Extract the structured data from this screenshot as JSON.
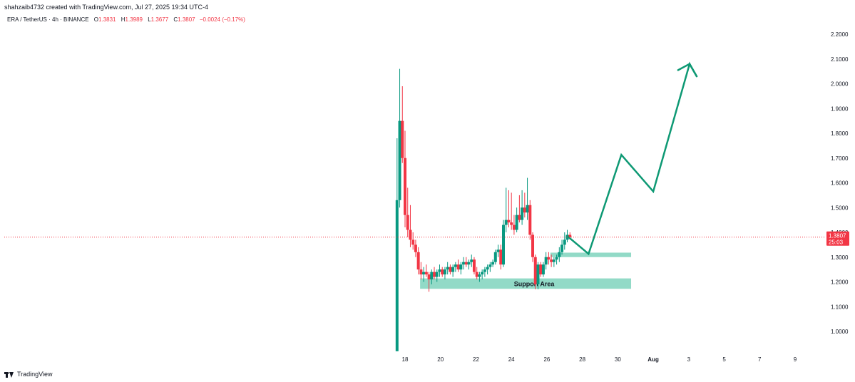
{
  "header": {
    "credit": "shahzaib4732 created with TradingView.com, Jul 27, 2025 19:34 UTC-4"
  },
  "legend": {
    "symbol": "ERA / TetherUS · 4h · BINANCE",
    "o_label": "O",
    "o": "1.3831",
    "h_label": "H",
    "h": "1.3989",
    "l_label": "L",
    "l": "1.3677",
    "c_label": "C",
    "c": "1.3807",
    "change": "−0.0024 (−0.17%)"
  },
  "price_tag": {
    "price": "1.3807",
    "countdown": "25:03"
  },
  "footer": {
    "brand": "TradingView"
  },
  "colors": {
    "up": "#089981",
    "down": "#f23645",
    "projection": "#0e9974",
    "zone": "#7fd3bd",
    "current_line": "#f23645"
  },
  "chart_data": {
    "type": "candlestick",
    "ylim": [
      0.92,
      2.25
    ],
    "yticks": [
      "2.2000",
      "2.1000",
      "2.0000",
      "1.9000",
      "1.8000",
      "1.7000",
      "1.6000",
      "1.5000",
      "1.4000",
      "1.3000",
      "1.2000",
      "1.1000",
      "1.0000"
    ],
    "ytick_values": [
      2.2,
      2.1,
      2.0,
      1.9,
      1.8,
      1.7,
      1.6,
      1.5,
      1.4,
      1.3,
      1.2,
      1.1,
      1.0
    ],
    "xlim": [
      12.5,
      40.5
    ],
    "xticks": [
      "18",
      "20",
      "22",
      "24",
      "26",
      "28",
      "30",
      "Aug",
      "3",
      "5",
      "7",
      "9"
    ],
    "xtick_values": [
      18,
      20,
      22,
      24,
      26,
      28,
      30,
      32,
      34,
      36,
      38,
      40
    ],
    "candles": [
      {
        "t": 17.55,
        "o": 0.92,
        "h": 1.78,
        "l": 0.92,
        "c": 1.53
      },
      {
        "t": 17.7,
        "o": 1.53,
        "h": 2.06,
        "l": 1.5,
        "c": 1.85
      },
      {
        "t": 17.85,
        "o": 1.85,
        "h": 1.99,
        "l": 1.68,
        "c": 1.7
      },
      {
        "t": 18.0,
        "o": 1.7,
        "h": 1.81,
        "l": 1.42,
        "c": 1.47
      },
      {
        "t": 18.15,
        "o": 1.47,
        "h": 1.58,
        "l": 1.38,
        "c": 1.41
      },
      {
        "t": 18.3,
        "o": 1.41,
        "h": 1.51,
        "l": 1.34,
        "c": 1.37
      },
      {
        "t": 18.45,
        "o": 1.37,
        "h": 1.4,
        "l": 1.33,
        "c": 1.35
      },
      {
        "t": 18.6,
        "o": 1.35,
        "h": 1.37,
        "l": 1.3,
        "c": 1.32
      },
      {
        "t": 18.75,
        "o": 1.32,
        "h": 1.34,
        "l": 1.23,
        "c": 1.25
      },
      {
        "t": 18.9,
        "o": 1.25,
        "h": 1.28,
        "l": 1.21,
        "c": 1.23
      },
      {
        "t": 19.05,
        "o": 1.23,
        "h": 1.26,
        "l": 1.2,
        "c": 1.24
      },
      {
        "t": 19.2,
        "o": 1.24,
        "h": 1.27,
        "l": 1.22,
        "c": 1.23
      },
      {
        "t": 19.35,
        "o": 1.23,
        "h": 1.24,
        "l": 1.16,
        "c": 1.21
      },
      {
        "t": 19.5,
        "o": 1.21,
        "h": 1.25,
        "l": 1.19,
        "c": 1.24
      },
      {
        "t": 19.65,
        "o": 1.24,
        "h": 1.26,
        "l": 1.21,
        "c": 1.22
      },
      {
        "t": 19.8,
        "o": 1.22,
        "h": 1.25,
        "l": 1.2,
        "c": 1.24
      },
      {
        "t": 19.95,
        "o": 1.24,
        "h": 1.27,
        "l": 1.22,
        "c": 1.25
      },
      {
        "t": 20.1,
        "o": 1.25,
        "h": 1.26,
        "l": 1.22,
        "c": 1.23
      },
      {
        "t": 20.25,
        "o": 1.23,
        "h": 1.26,
        "l": 1.21,
        "c": 1.25
      },
      {
        "t": 20.4,
        "o": 1.25,
        "h": 1.28,
        "l": 1.23,
        "c": 1.26
      },
      {
        "t": 20.55,
        "o": 1.26,
        "h": 1.27,
        "l": 1.23,
        "c": 1.24
      },
      {
        "t": 20.7,
        "o": 1.24,
        "h": 1.27,
        "l": 1.22,
        "c": 1.26
      },
      {
        "t": 20.85,
        "o": 1.26,
        "h": 1.28,
        "l": 1.24,
        "c": 1.27
      },
      {
        "t": 21.0,
        "o": 1.27,
        "h": 1.29,
        "l": 1.24,
        "c": 1.25
      },
      {
        "t": 21.15,
        "o": 1.25,
        "h": 1.28,
        "l": 1.23,
        "c": 1.27
      },
      {
        "t": 21.3,
        "o": 1.27,
        "h": 1.3,
        "l": 1.25,
        "c": 1.28
      },
      {
        "t": 21.45,
        "o": 1.28,
        "h": 1.3,
        "l": 1.26,
        "c": 1.27
      },
      {
        "t": 21.6,
        "o": 1.27,
        "h": 1.29,
        "l": 1.25,
        "c": 1.28
      },
      {
        "t": 21.75,
        "o": 1.28,
        "h": 1.31,
        "l": 1.26,
        "c": 1.29
      },
      {
        "t": 21.9,
        "o": 1.29,
        "h": 1.3,
        "l": 1.23,
        "c": 1.24
      },
      {
        "t": 22.05,
        "o": 1.24,
        "h": 1.26,
        "l": 1.21,
        "c": 1.22
      },
      {
        "t": 22.2,
        "o": 1.22,
        "h": 1.24,
        "l": 1.2,
        "c": 1.23
      },
      {
        "t": 22.35,
        "o": 1.23,
        "h": 1.25,
        "l": 1.21,
        "c": 1.24
      },
      {
        "t": 22.5,
        "o": 1.24,
        "h": 1.26,
        "l": 1.22,
        "c": 1.25
      },
      {
        "t": 22.65,
        "o": 1.25,
        "h": 1.27,
        "l": 1.23,
        "c": 1.26
      },
      {
        "t": 22.8,
        "o": 1.26,
        "h": 1.28,
        "l": 1.24,
        "c": 1.27
      },
      {
        "t": 22.95,
        "o": 1.27,
        "h": 1.29,
        "l": 1.26,
        "c": 1.28
      },
      {
        "t": 23.1,
        "o": 1.28,
        "h": 1.33,
        "l": 1.27,
        "c": 1.32
      },
      {
        "t": 23.25,
        "o": 1.32,
        "h": 1.35,
        "l": 1.3,
        "c": 1.33
      },
      {
        "t": 23.4,
        "o": 1.33,
        "h": 1.35,
        "l": 1.25,
        "c": 1.27
      },
      {
        "t": 23.55,
        "o": 1.27,
        "h": 1.45,
        "l": 1.26,
        "c": 1.43
      },
      {
        "t": 23.7,
        "o": 1.43,
        "h": 1.58,
        "l": 1.4,
        "c": 1.45
      },
      {
        "t": 23.85,
        "o": 1.45,
        "h": 1.57,
        "l": 1.42,
        "c": 1.44
      },
      {
        "t": 24.0,
        "o": 1.44,
        "h": 1.56,
        "l": 1.41,
        "c": 1.43
      },
      {
        "t": 24.15,
        "o": 1.43,
        "h": 1.47,
        "l": 1.39,
        "c": 1.41
      },
      {
        "t": 24.3,
        "o": 1.41,
        "h": 1.5,
        "l": 1.4,
        "c": 1.47
      },
      {
        "t": 24.45,
        "o": 1.47,
        "h": 1.55,
        "l": 1.44,
        "c": 1.45
      },
      {
        "t": 24.6,
        "o": 1.45,
        "h": 1.57,
        "l": 1.43,
        "c": 1.5
      },
      {
        "t": 24.75,
        "o": 1.5,
        "h": 1.56,
        "l": 1.46,
        "c": 1.48
      },
      {
        "t": 24.9,
        "o": 1.48,
        "h": 1.62,
        "l": 1.45,
        "c": 1.51
      },
      {
        "t": 25.05,
        "o": 1.51,
        "h": 1.53,
        "l": 1.37,
        "c": 1.39
      },
      {
        "t": 25.2,
        "o": 1.39,
        "h": 1.4,
        "l": 1.28,
        "c": 1.3
      },
      {
        "t": 25.35,
        "o": 1.3,
        "h": 1.31,
        "l": 1.17,
        "c": 1.19
      },
      {
        "t": 25.5,
        "o": 1.19,
        "h": 1.28,
        "l": 1.17,
        "c": 1.27
      },
      {
        "t": 25.65,
        "o": 1.27,
        "h": 1.28,
        "l": 1.22,
        "c": 1.23
      },
      {
        "t": 25.8,
        "o": 1.23,
        "h": 1.28,
        "l": 1.22,
        "c": 1.27
      },
      {
        "t": 25.95,
        "o": 1.27,
        "h": 1.32,
        "l": 1.25,
        "c": 1.3
      },
      {
        "t": 26.1,
        "o": 1.3,
        "h": 1.32,
        "l": 1.27,
        "c": 1.29
      },
      {
        "t": 26.25,
        "o": 1.29,
        "h": 1.31,
        "l": 1.26,
        "c": 1.28
      },
      {
        "t": 26.4,
        "o": 1.28,
        "h": 1.3,
        "l": 1.26,
        "c": 1.29
      },
      {
        "t": 26.55,
        "o": 1.29,
        "h": 1.31,
        "l": 1.27,
        "c": 1.3
      },
      {
        "t": 26.7,
        "o": 1.3,
        "h": 1.34,
        "l": 1.28,
        "c": 1.32
      },
      {
        "t": 26.85,
        "o": 1.32,
        "h": 1.37,
        "l": 1.31,
        "c": 1.35
      },
      {
        "t": 27.0,
        "o": 1.35,
        "h": 1.4,
        "l": 1.33,
        "c": 1.37
      },
      {
        "t": 27.15,
        "o": 1.37,
        "h": 1.41,
        "l": 1.36,
        "c": 1.39
      },
      {
        "t": 27.3,
        "o": 1.39,
        "h": 1.4,
        "l": 1.37,
        "c": 1.38
      }
    ],
    "projection_path": [
      {
        "t": 27.15,
        "p": 1.385
      },
      {
        "t": 28.35,
        "p": 1.313
      },
      {
        "t": 30.2,
        "p": 1.713
      },
      {
        "t": 32.0,
        "p": 1.565
      },
      {
        "t": 34.05,
        "p": 2.08
      },
      {
        "t": 34.45,
        "p": 2.03
      }
    ],
    "projection_arrow": [
      {
        "t": 33.4,
        "p": 2.055
      },
      {
        "t": 34.05,
        "p": 2.08
      },
      {
        "t": 34.45,
        "p": 2.03
      }
    ],
    "zones": [
      {
        "name": "Support Area",
        "label": "Support Area",
        "t1": 18.85,
        "t2": 30.75,
        "p1": 1.172,
        "p2": 1.214
      },
      {
        "name": "resistance",
        "label": "",
        "t1": 26.2,
        "t2": 30.75,
        "p1": 1.3,
        "p2": 1.318
      }
    ],
    "current_price": 1.3807
  }
}
